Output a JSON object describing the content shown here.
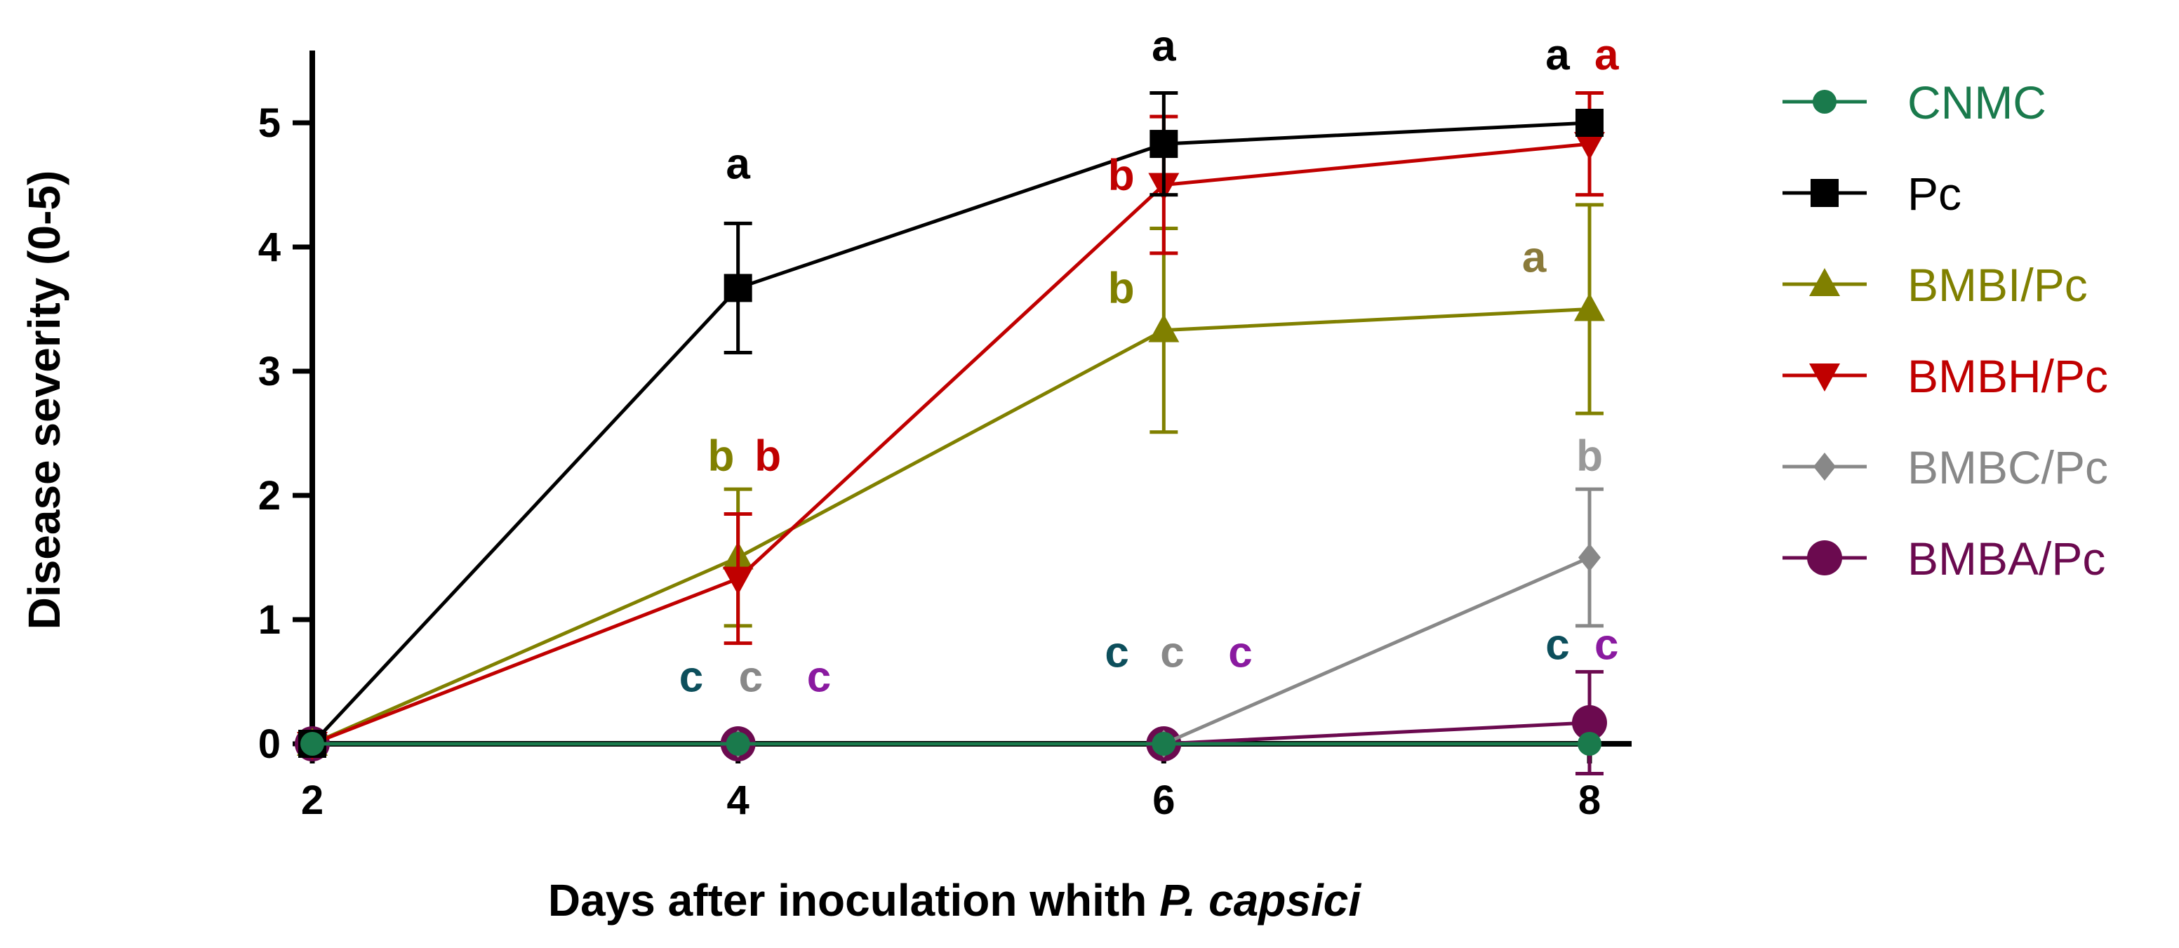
{
  "chart_data": {
    "type": "line",
    "xlabel": "Days after inoculation whith ",
    "xlabel_italic": "P. capsici",
    "ylabel": "Disease severity (0-5)",
    "x": [
      2,
      4,
      6,
      8
    ],
    "x_ticks": [
      "2",
      "4",
      "6",
      "8"
    ],
    "y_ticks": [
      "0",
      "1",
      "2",
      "3",
      "4",
      "5"
    ],
    "xlim": [
      2,
      8
    ],
    "ylim": [
      0,
      5.5
    ],
    "grid": false,
    "legend_position": "right",
    "series": [
      {
        "name": "CNMC",
        "color": "#1a7a4c",
        "marker": "circle",
        "values": [
          0,
          0,
          0,
          0
        ],
        "errors": [
          0,
          0,
          0,
          0
        ]
      },
      {
        "name": "Pc",
        "color": "#000000",
        "marker": "square",
        "values": [
          0,
          3.67,
          4.83,
          5.0
        ],
        "errors": [
          0,
          0.52,
          0.41,
          0
        ]
      },
      {
        "name": "BMBI/Pc",
        "color": "#808000",
        "marker": "triangle-up",
        "values": [
          0,
          1.5,
          3.33,
          3.5
        ],
        "errors": [
          0,
          0.55,
          0.82,
          0.84
        ]
      },
      {
        "name": "BMBH/Pc",
        "color": "#c00000",
        "marker": "triangle-down",
        "values": [
          0,
          1.33,
          4.5,
          4.83
        ],
        "errors": [
          0,
          0.52,
          0.55,
          0.41
        ]
      },
      {
        "name": "BMBC/Pc",
        "color": "#888888",
        "marker": "diamond",
        "values": [
          0,
          0,
          0,
          1.5
        ],
        "errors": [
          0,
          0,
          0,
          0.55
        ]
      },
      {
        "name": "BMBA/Pc",
        "color": "#6b0a4f",
        "marker": "circle-large",
        "values": [
          0,
          0,
          0,
          0.17
        ],
        "errors": [
          0,
          0,
          0,
          0.41
        ]
      }
    ],
    "annotations": [
      {
        "text": "a",
        "x": 4,
        "y": 4.55,
        "color": "#000000"
      },
      {
        "text": "b",
        "x": 3.92,
        "y": 2.2,
        "color": "#808000"
      },
      {
        "text": "b",
        "x": 4.14,
        "y": 2.2,
        "color": "#c00000"
      },
      {
        "text": "c",
        "x": 3.78,
        "y": 0.42,
        "color": "#0d4f5c"
      },
      {
        "text": "c",
        "x": 4.06,
        "y": 0.42,
        "color": "#888888"
      },
      {
        "text": "c",
        "x": 4.38,
        "y": 0.42,
        "color": "#8a1aa0"
      },
      {
        "text": "a",
        "x": 6,
        "y": 5.5,
        "color": "#000000"
      },
      {
        "text": "b",
        "x": 5.8,
        "y": 4.46,
        "color": "#c00000"
      },
      {
        "text": "b",
        "x": 5.8,
        "y": 3.55,
        "color": "#808000"
      },
      {
        "text": "c",
        "x": 5.78,
        "y": 0.62,
        "color": "#0d4f5c"
      },
      {
        "text": "c",
        "x": 6.04,
        "y": 0.62,
        "color": "#888888"
      },
      {
        "text": "c",
        "x": 6.36,
        "y": 0.62,
        "color": "#8a1aa0"
      },
      {
        "text": "a",
        "x": 7.85,
        "y": 5.43,
        "color": "#000000"
      },
      {
        "text": "a",
        "x": 8.08,
        "y": 5.43,
        "color": "#c00000"
      },
      {
        "text": "a",
        "x": 7.74,
        "y": 3.8,
        "color": "#8a7a3a"
      },
      {
        "text": "b",
        "x": 8.0,
        "y": 2.2,
        "color": "#999999"
      },
      {
        "text": "c",
        "x": 7.85,
        "y": 0.68,
        "color": "#0d4f5c"
      },
      {
        "text": "c",
        "x": 8.08,
        "y": 0.68,
        "color": "#8a1aa0"
      }
    ]
  }
}
